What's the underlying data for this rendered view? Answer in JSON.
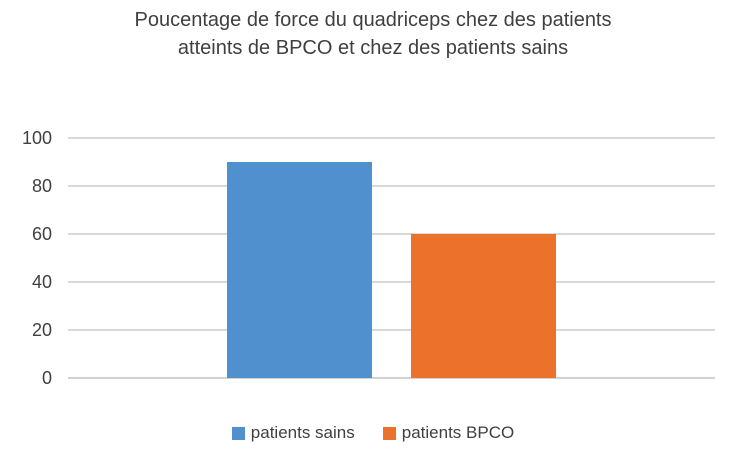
{
  "chart_data": {
    "type": "bar",
    "title": "Poucentage de force du quadriceps chez des patients atteints de BPCO et chez des patients sains",
    "title_lines": [
      "Poucentage de force du quadriceps chez des patients",
      "atteints de BPCO et chez des patients sains"
    ],
    "categories": [
      ""
    ],
    "series": [
      {
        "name": "patients sains",
        "values": [
          90
        ],
        "color": "#5190CE"
      },
      {
        "name": "patients BPCO",
        "values": [
          60
        ],
        "color": "#EC722C"
      }
    ],
    "xlabel": "",
    "ylabel": "",
    "ylim": [
      0,
      100
    ],
    "yticks": [
      0,
      20,
      40,
      60,
      80,
      100
    ],
    "grid": true,
    "legend_position": "bottom"
  },
  "colors": {
    "title_text": "#3F3F3F",
    "axis_text": "#404040",
    "gridline": "#D9D9D9",
    "background": "#FFFFFF"
  }
}
